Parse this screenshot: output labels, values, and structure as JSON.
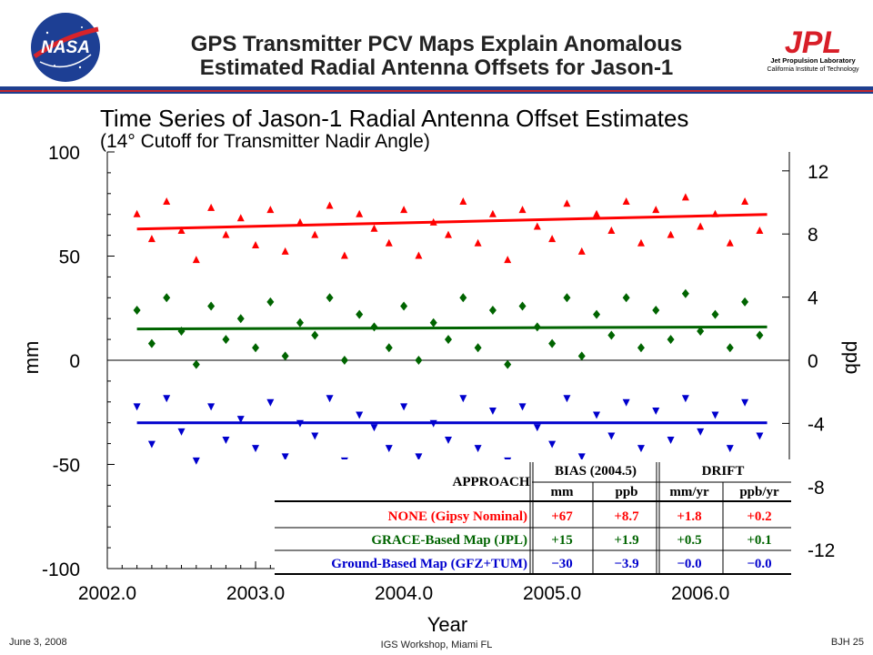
{
  "slide": {
    "title_line1": "GPS Transmitter PCV Maps Explain Anomalous",
    "title_line2": "Estimated Radial Antenna Offsets for Jason-1",
    "nasa_logo_text": "NASA",
    "jpl_logo_text": "JPL",
    "jpl_sub1": "Jet Propulsion Laboratory",
    "jpl_sub2": "California Institute of Technology",
    "footer_date": "June 3, 2008",
    "footer_center": "IGS Workshop, Miami FL",
    "footer_page": "BJH 25",
    "colors": {
      "rule_blue": "#1f3f8f",
      "rule_red": "#c0282e",
      "jpl_red": "#d81e28"
    }
  },
  "chart_data": {
    "type": "scatter",
    "title": "Time Series of Jason-1 Radial Antenna Offset Estimates",
    "subtitle": "(14° Cutoff for Transmitter Nadir Angle)",
    "xlabel": "Year",
    "ylabel_left": "mm",
    "ylabel_right": "ppb",
    "xlim": [
      2002.0,
      2006.6
    ],
    "ylim_left": [
      -100,
      100
    ],
    "ylim_right": [
      -13.2,
      13.2
    ],
    "x_ticks": [
      "2002.0",
      "2003.0",
      "2004.0",
      "2005.0",
      "2006.0"
    ],
    "x_tick_values": [
      2002.0,
      2003.0,
      2004.0,
      2005.0,
      2006.0
    ],
    "y_ticks_left": [
      "100",
      "50",
      "0",
      "-50",
      "-100"
    ],
    "y_tick_values_left": [
      100,
      50,
      0,
      -50,
      -100
    ],
    "y_ticks_right": [
      "12",
      "8",
      "4",
      "0",
      "-4",
      "-8",
      "-12"
    ],
    "y_tick_values_right": [
      12,
      8,
      4,
      0,
      -4,
      -8,
      -12
    ],
    "grid": false,
    "series": [
      {
        "color": "#ff0000",
        "marker": "triangle-up",
        "trend": {
          "x": [
            2002.2,
            2006.45
          ],
          "y": [
            63,
            70
          ]
        },
        "x": [
          2002.2,
          2002.3,
          2002.4,
          2002.5,
          2002.6,
          2002.7,
          2002.8,
          2002.9,
          2003.0,
          2003.1,
          2003.2,
          2003.3,
          2003.4,
          2003.5,
          2003.6,
          2003.7,
          2003.8,
          2003.9,
          2004.0,
          2004.1,
          2004.2,
          2004.3,
          2004.4,
          2004.5,
          2004.6,
          2004.7,
          2004.8,
          2004.9,
          2005.0,
          2005.1,
          2005.2,
          2005.3,
          2005.4,
          2005.5,
          2005.6,
          2005.7,
          2005.8,
          2005.9,
          2006.0,
          2006.1,
          2006.2,
          2006.3,
          2006.4
        ],
        "y": [
          70,
          58,
          76,
          62,
          48,
          73,
          60,
          68,
          55,
          72,
          52,
          66,
          60,
          74,
          50,
          70,
          63,
          56,
          72,
          50,
          66,
          60,
          76,
          56,
          70,
          48,
          72,
          64,
          58,
          75,
          52,
          70,
          62,
          76,
          56,
          72,
          60,
          78,
          64,
          70,
          56,
          76,
          62
        ]
      },
      {
        "color": "#006400",
        "marker": "diamond",
        "trend": {
          "x": [
            2002.2,
            2006.45
          ],
          "y": [
            15,
            16
          ]
        },
        "x": [
          2002.2,
          2002.3,
          2002.4,
          2002.5,
          2002.6,
          2002.7,
          2002.8,
          2002.9,
          2003.0,
          2003.1,
          2003.2,
          2003.3,
          2003.4,
          2003.5,
          2003.6,
          2003.7,
          2003.8,
          2003.9,
          2004.0,
          2004.1,
          2004.2,
          2004.3,
          2004.4,
          2004.5,
          2004.6,
          2004.7,
          2004.8,
          2004.9,
          2005.0,
          2005.1,
          2005.2,
          2005.3,
          2005.4,
          2005.5,
          2005.6,
          2005.7,
          2005.8,
          2005.9,
          2006.0,
          2006.1,
          2006.2,
          2006.3,
          2006.4
        ],
        "y": [
          24,
          8,
          30,
          14,
          -2,
          26,
          10,
          20,
          6,
          28,
          2,
          18,
          12,
          30,
          0,
          22,
          16,
          6,
          26,
          0,
          18,
          10,
          30,
          6,
          24,
          -2,
          26,
          16,
          8,
          30,
          2,
          22,
          12,
          30,
          6,
          24,
          10,
          32,
          14,
          22,
          6,
          28,
          12
        ]
      },
      {
        "color": "#0000cd",
        "marker": "triangle-down",
        "trend": {
          "x": [
            2002.2,
            2006.45
          ],
          "y": [
            -30,
            -30
          ]
        },
        "x": [
          2002.2,
          2002.3,
          2002.4,
          2002.5,
          2002.6,
          2002.7,
          2002.8,
          2002.9,
          2003.0,
          2003.1,
          2003.2,
          2003.3,
          2003.4,
          2003.5,
          2003.6,
          2003.7,
          2003.8,
          2003.9,
          2004.0,
          2004.1,
          2004.2,
          2004.3,
          2004.4,
          2004.5,
          2004.6,
          2004.7,
          2004.8,
          2004.9,
          2005.0,
          2005.1,
          2005.2,
          2005.3,
          2005.4,
          2005.5,
          2005.6,
          2005.7,
          2005.8,
          2005.9,
          2006.0,
          2006.1,
          2006.2,
          2006.3,
          2006.4
        ],
        "y": [
          -22,
          -40,
          -18,
          -34,
          -48,
          -22,
          -38,
          -28,
          -42,
          -20,
          -46,
          -30,
          -36,
          -18,
          -48,
          -26,
          -32,
          -42,
          -22,
          -46,
          -30,
          -38,
          -18,
          -42,
          -24,
          -48,
          -22,
          -32,
          -40,
          -18,
          -46,
          -26,
          -36,
          -20,
          -42,
          -24,
          -38,
          -18,
          -34,
          -26,
          -42,
          -20,
          -36
        ]
      }
    ],
    "table": {
      "header_approach": "APPROACH",
      "header_bias": "BIAS (2004.5)",
      "header_drift": "DRIFT",
      "sub_headers": [
        "mm",
        "ppb",
        "mm/yr",
        "ppb/yr"
      ],
      "rows": [
        {
          "label": "NONE (Gipsy Nominal)",
          "color": "#ff0000",
          "values": [
            "+67",
            "+8.7",
            "+1.8",
            "+0.2"
          ]
        },
        {
          "label": "GRACE-Based Map (JPL)",
          "color": "#006400",
          "values": [
            "+15",
            "+1.9",
            "+0.5",
            "+0.1"
          ]
        },
        {
          "label": "Ground-Based Map (GFZ+TUM)",
          "color": "#0000cd",
          "values": [
            "−30",
            "−3.9",
            "−0.0",
            "−0.0"
          ]
        }
      ]
    }
  }
}
